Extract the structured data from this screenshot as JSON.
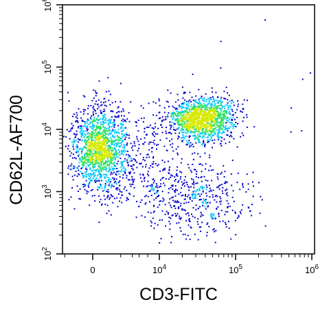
{
  "chart_data": {
    "type": "scatter",
    "style": "density dot plot (flow cytometry)",
    "xlabel": "CD3-FITC",
    "ylabel": "CD62L-AF700",
    "x_scale": "biexponential",
    "y_scale": "log",
    "xlim": [
      -1000,
      1000000
    ],
    "ylim": [
      100,
      1000000
    ],
    "x_ticks": [
      {
        "value": 0,
        "base": "0",
        "exp": ""
      },
      {
        "value": 10000,
        "base": "10",
        "exp": "4"
      },
      {
        "value": 100000,
        "base": "10",
        "exp": "5"
      },
      {
        "value": 1000000,
        "base": "10",
        "exp": "6"
      }
    ],
    "y_ticks": [
      {
        "value": 100,
        "base": "10",
        "exp": "2"
      },
      {
        "value": 1000,
        "base": "10",
        "exp": "3"
      },
      {
        "value": 10000,
        "base": "10",
        "exp": "4"
      },
      {
        "value": 100000,
        "base": "10",
        "exp": "5"
      },
      {
        "value": 1000000,
        "base": "10",
        "exp": "6"
      }
    ],
    "populations": [
      {
        "x_center": 200,
        "x_spread": 500,
        "y_center": 5000,
        "y_spread_log": 0.35,
        "count": 1400
      },
      {
        "x_center": 35000,
        "x_spread_log": 0.22,
        "y_center": 15000,
        "y_spread_log": 0.17,
        "count": 1300
      },
      {
        "x_center": 30000,
        "x_spread_log": 0.35,
        "y_center": 800,
        "y_spread_log": 0.3,
        "count": 450
      },
      {
        "x_center": 3000,
        "x_spread_log": 0.55,
        "y_center": 3000,
        "y_spread_log": 0.45,
        "count": 300
      },
      {
        "x_center": 100000,
        "x_spread_log": 0.7,
        "y_center": 30000,
        "y_spread_log": 0.9,
        "count": 25
      }
    ],
    "colors": {
      "low": "#0000cc",
      "mid": "#00c8ff",
      "high": "#30e060",
      "peak": "#d8e800"
    },
    "grid": false
  }
}
